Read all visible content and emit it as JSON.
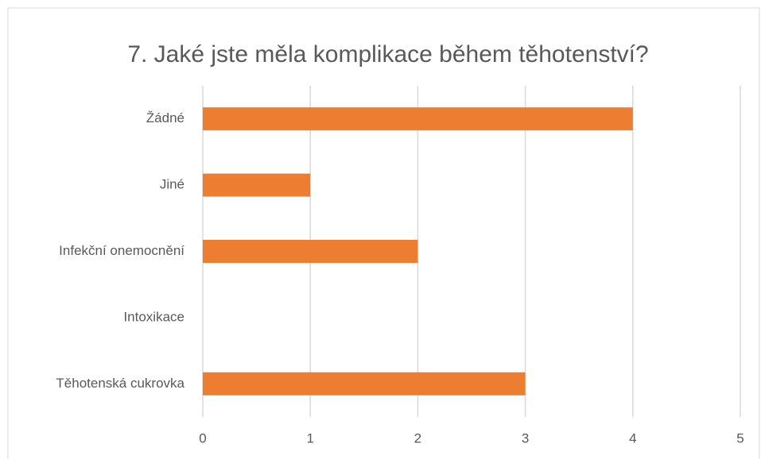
{
  "chart_data": {
    "type": "bar",
    "orientation": "horizontal",
    "title": "7. Jaké jste měla komplikace během těhotenství?",
    "categories": [
      "Žádné",
      "Jiné",
      "Infekční onemocnění",
      "Intoxikace",
      "Těhotenská cukrovka"
    ],
    "values": [
      4,
      1,
      2,
      0,
      3
    ],
    "color": "#ed7d31",
    "xlim": [
      0,
      5
    ],
    "xticks": [
      0,
      1,
      2,
      3,
      4,
      5
    ],
    "grid": true
  }
}
